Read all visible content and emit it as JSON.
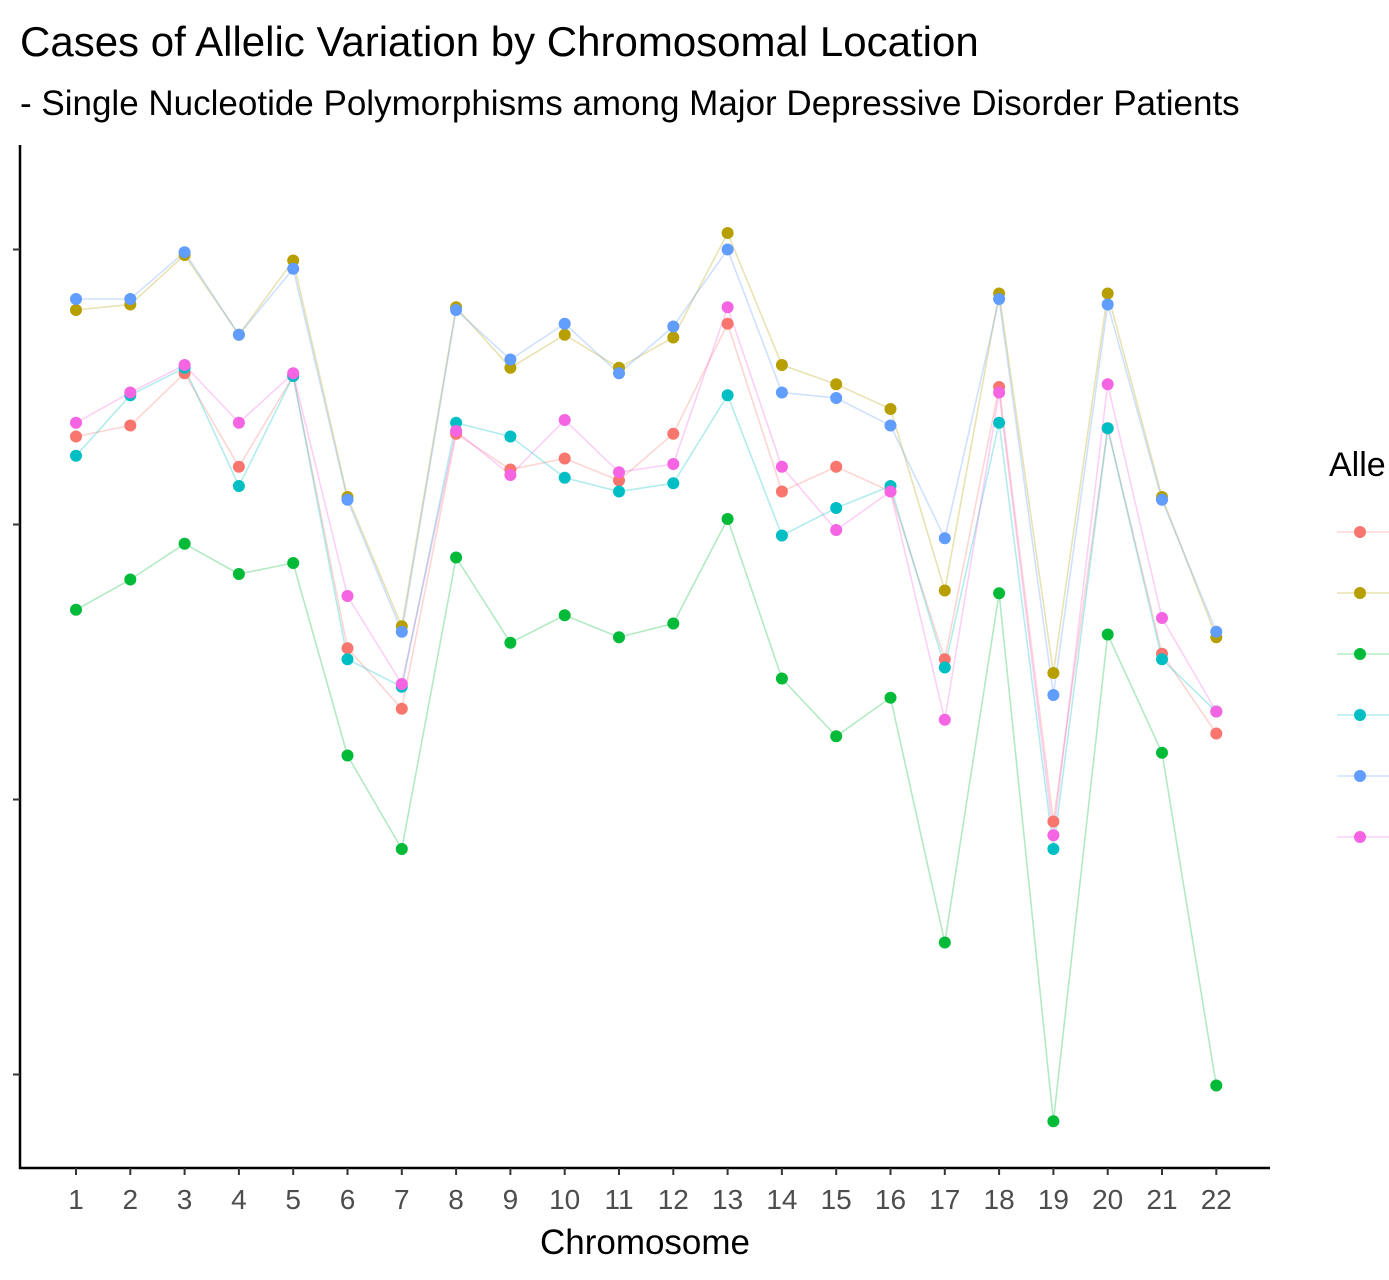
{
  "chart_data": {
    "type": "line",
    "title": "Cases of Allelic Variation by Chromosomal Location",
    "subtitle": "- Single Nucleotide Polymorphisms among Major Depressive Disorder Patients",
    "xlabel": "Chromosome",
    "ylabel": "",
    "legend_title": "Alle",
    "legend_position": "right",
    "grid": false,
    "categories": [
      "1",
      "2",
      "3",
      "4",
      "5",
      "6",
      "7",
      "8",
      "9",
      "10",
      "11",
      "12",
      "13",
      "14",
      "15",
      "16",
      "17",
      "18",
      "19",
      "20",
      "21",
      "22"
    ],
    "ylim": [
      -0.34,
      3.38
    ],
    "y_ticks": [
      0,
      1,
      2,
      3
    ],
    "series": [
      {
        "color": "#F8766D",
        "values": [
          2.32,
          2.36,
          2.55,
          2.21,
          2.54,
          1.55,
          1.33,
          2.33,
          2.2,
          2.24,
          2.16,
          2.33,
          2.73,
          2.12,
          2.21,
          2.12,
          1.51,
          2.5,
          0.92,
          2.35,
          1.53,
          1.24
        ]
      },
      {
        "color": "#B79F00",
        "values": [
          2.78,
          2.8,
          2.98,
          2.69,
          2.96,
          2.1,
          1.63,
          2.79,
          2.57,
          2.69,
          2.57,
          2.68,
          3.06,
          2.58,
          2.51,
          2.42,
          1.76,
          2.84,
          1.46,
          2.84,
          2.1,
          1.59
        ]
      },
      {
        "color": "#00BA38",
        "values": [
          1.69,
          1.8,
          1.93,
          1.82,
          1.86,
          1.16,
          0.82,
          1.88,
          1.57,
          1.67,
          1.59,
          1.64,
          2.02,
          1.44,
          1.23,
          1.37,
          0.48,
          1.75,
          -0.17,
          1.6,
          1.17,
          -0.04
        ]
      },
      {
        "color": "#00BFC4",
        "values": [
          2.25,
          2.47,
          2.57,
          2.14,
          2.54,
          1.51,
          1.41,
          2.37,
          2.32,
          2.17,
          2.12,
          2.15,
          2.47,
          1.96,
          2.06,
          2.14,
          1.48,
          2.37,
          0.82,
          2.35,
          1.51,
          1.32
        ]
      },
      {
        "color": "#619CFF",
        "values": [
          2.82,
          2.82,
          2.99,
          2.69,
          2.93,
          2.09,
          1.61,
          2.78,
          2.6,
          2.73,
          2.55,
          2.72,
          3.0,
          2.48,
          2.46,
          2.36,
          1.95,
          2.82,
          1.38,
          2.8,
          2.09,
          1.61
        ]
      },
      {
        "color": "#F564E3",
        "values": [
          2.37,
          2.48,
          2.58,
          2.37,
          2.55,
          1.74,
          1.42,
          2.34,
          2.18,
          2.38,
          2.19,
          2.22,
          2.79,
          2.21,
          1.98,
          2.12,
          1.29,
          2.48,
          0.87,
          2.51,
          1.66,
          1.32
        ]
      }
    ]
  }
}
